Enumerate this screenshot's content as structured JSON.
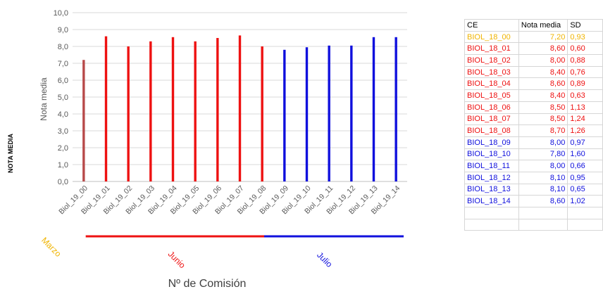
{
  "chart_data": {
    "type": "bar",
    "ylabel": "Nota media",
    "side_label": "NOTA MEDIA",
    "xlabel": "Nº de Comisión",
    "ylim": [
      0,
      10
    ],
    "yticks": [
      "0,0",
      "1,0",
      "2,0",
      "3,0",
      "4,0",
      "5,0",
      "6,0",
      "7,0",
      "8,0",
      "9,0",
      "10,0"
    ],
    "categories": [
      "Biol_19_00",
      "Biol_19_01",
      "Biol_19_02",
      "Biol_19_03",
      "Biol_19_04",
      "Biol_19_05",
      "Biol_19_06",
      "Biol_19_07",
      "Biol_19_08",
      "Biol_19_09",
      "Biol_19_10",
      "Biol_19_11",
      "Biol_19_12",
      "Biol_19_13",
      "Biol_19_14"
    ],
    "values": [
      7.2,
      8.6,
      8.0,
      8.3,
      8.55,
      8.3,
      8.5,
      8.65,
      8.0,
      7.8,
      7.95,
      8.05,
      8.05,
      8.55,
      8.55
    ],
    "groups": [
      "Marzo",
      "Junio",
      "Junio",
      "Junio",
      "Junio",
      "Junio",
      "Junio",
      "Junio",
      "Junio",
      "Julio",
      "Julio",
      "Julio",
      "Julio",
      "Julio",
      "Julio"
    ],
    "group_labels": [
      {
        "label": "Marzo",
        "color": "#f0b400"
      },
      {
        "label": "Junio",
        "color": "#ee1111"
      },
      {
        "label": "Julio",
        "color": "#1010dd"
      }
    ],
    "bar_colors": {
      "Marzo": "#b84a4a",
      "Junio": "#ee1111",
      "Julio": "#1010dd"
    },
    "grid": true
  },
  "table": {
    "headers": [
      "CE",
      "Nota media",
      "SD"
    ],
    "rows": [
      {
        "ce": "BIOL_18_00",
        "nota": "7,20",
        "sd": "0,93",
        "group": "Marzo"
      },
      {
        "ce": "BIOL_18_01",
        "nota": "8,60",
        "sd": "0,60",
        "group": "Junio"
      },
      {
        "ce": "BIOL_18_02",
        "nota": "8,00",
        "sd": "0,88",
        "group": "Junio"
      },
      {
        "ce": "BIOL_18_03",
        "nota": "8,40",
        "sd": "0,76",
        "group": "Junio"
      },
      {
        "ce": "BIOL_18_04",
        "nota": "8,60",
        "sd": "0,89",
        "group": "Junio"
      },
      {
        "ce": "BIOL_18_05",
        "nota": "8,40",
        "sd": "0,63",
        "group": "Junio"
      },
      {
        "ce": "BIOL_18_06",
        "nota": "8,50",
        "sd": "1,13",
        "group": "Junio"
      },
      {
        "ce": "BIOL_18_07",
        "nota": "8,50",
        "sd": "1,24",
        "group": "Junio"
      },
      {
        "ce": "BIOL_18_08",
        "nota": "8,70",
        "sd": "1,26",
        "group": "Junio"
      },
      {
        "ce": "BIOL_18_09",
        "nota": "8,00",
        "sd": "0,97",
        "group": "Julio"
      },
      {
        "ce": "BIOL_18_10",
        "nota": "7,80",
        "sd": "1,60",
        "group": "Julio"
      },
      {
        "ce": "BIOL_18_11",
        "nota": "8,00",
        "sd": "0,66",
        "group": "Julio"
      },
      {
        "ce": "BIOL_18_12",
        "nota": "8,10",
        "sd": "0,95",
        "group": "Julio"
      },
      {
        "ce": "BIOL_18_13",
        "nota": "8,10",
        "sd": "0,65",
        "group": "Julio"
      },
      {
        "ce": "BIOL_18_14",
        "nota": "8,60",
        "sd": "1,02",
        "group": "Julio"
      }
    ],
    "group_colors": {
      "Marzo": "#f0b400",
      "Junio": "#ee1111",
      "Julio": "#1010dd"
    }
  }
}
